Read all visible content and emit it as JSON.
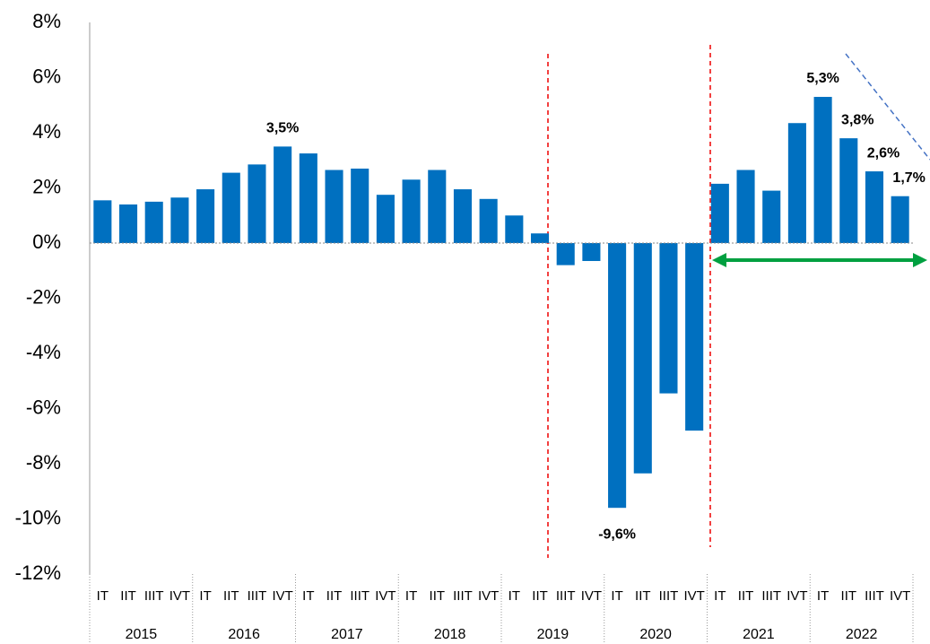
{
  "chart_data": {
    "type": "bar",
    "categories": [
      "IT",
      "IIT",
      "IIIT",
      "IVT",
      "IT",
      "IIT",
      "IIIT",
      "IVT",
      "IT",
      "IIT",
      "IIIT",
      "IVT",
      "IT",
      "IIT",
      "IIIT",
      "IVT",
      "IT",
      "IIT",
      "IIIT",
      "IVT",
      "IT",
      "IIT",
      "IIIT",
      "IVT",
      "IT",
      "IIT",
      "IIIT",
      "IVT",
      "IT",
      "IIT",
      "IIIT",
      "IVT"
    ],
    "groups": [
      "2015",
      "2016",
      "2017",
      "2018",
      "2019",
      "2020",
      "2021",
      "2022"
    ],
    "values": [
      1.55,
      1.4,
      1.5,
      1.65,
      1.95,
      2.55,
      2.85,
      3.5,
      3.25,
      2.65,
      2.7,
      1.75,
      2.3,
      2.65,
      1.95,
      1.6,
      1.0,
      0.35,
      -0.8,
      -0.65,
      -9.6,
      -8.35,
      -5.45,
      -6.8,
      2.15,
      2.65,
      1.9,
      4.35,
      5.3,
      3.8,
      2.6,
      1.7
    ],
    "value_labels": [
      null,
      null,
      null,
      null,
      null,
      null,
      null,
      "3,5%",
      null,
      null,
      null,
      null,
      null,
      null,
      null,
      null,
      null,
      null,
      null,
      null,
      "-9,6%",
      null,
      null,
      null,
      null,
      null,
      null,
      null,
      "5,3%",
      "3,8%",
      "2,6%",
      "1,7%"
    ],
    "color": "#0070c0",
    "ylim": [
      -12,
      8
    ],
    "yticks": [
      {
        "value": -12,
        "label": "-12%"
      },
      {
        "value": -10,
        "label": "-10%"
      },
      {
        "value": -8,
        "label": "-8%"
      },
      {
        "value": -6,
        "label": "-6%"
      },
      {
        "value": -4,
        "label": "-4%"
      },
      {
        "value": -2,
        "label": "-2%"
      },
      {
        "value": 0,
        "label": "0%"
      },
      {
        "value": 2,
        "label": "2%"
      },
      {
        "value": 4,
        "label": "4%"
      },
      {
        "value": 6,
        "label": "6%"
      },
      {
        "value": 8,
        "label": "8%"
      }
    ],
    "grid": false
  }
}
